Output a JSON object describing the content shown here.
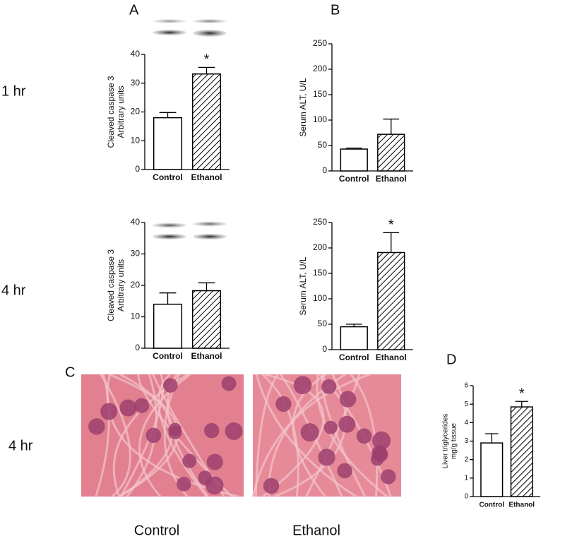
{
  "figure": {
    "panels": [
      "A",
      "B",
      "C",
      "D"
    ],
    "rows": [
      "1 hr",
      "4 hr",
      "4 hr"
    ],
    "image_captions": [
      "Control",
      "Ethanol"
    ]
  },
  "chart_data": [
    {
      "type": "bar",
      "ylabel": [
        "Cleaved caspase 3",
        "Arbitrary units"
      ],
      "categories": [
        "Control",
        "Ethanol"
      ],
      "values": [
        18,
        33.2
      ],
      "errors": [
        1.8,
        2.3
      ],
      "hatched": [
        false,
        true
      ],
      "significance": [
        null,
        "*"
      ],
      "ylim": [
        0,
        40
      ],
      "yticks": [
        0,
        10,
        20,
        30,
        40
      ]
    },
    {
      "type": "bar",
      "ylabel": [
        "Serum ALT, U/L"
      ],
      "categories": [
        "Control",
        "Ethanol"
      ],
      "values": [
        43,
        72
      ],
      "errors": [
        2,
        30
      ],
      "hatched": [
        false,
        true
      ],
      "significance": [
        null,
        null
      ],
      "ylim": [
        0,
        250
      ],
      "yticks": [
        0,
        50,
        100,
        150,
        200,
        250
      ]
    },
    {
      "type": "bar",
      "ylabel": [
        "Cleaved caspase 3",
        "Arbitrary units"
      ],
      "categories": [
        "Control",
        "Ethanol"
      ],
      "values": [
        14,
        18.3
      ],
      "errors": [
        3.6,
        2.5
      ],
      "hatched": [
        false,
        true
      ],
      "significance": [
        null,
        null
      ],
      "ylim": [
        0,
        40
      ],
      "yticks": [
        0,
        10,
        20,
        30,
        40
      ]
    },
    {
      "type": "bar",
      "ylabel": [
        "Serum ALT, U/L"
      ],
      "categories": [
        "Control",
        "Ethanol"
      ],
      "values": [
        45,
        191
      ],
      "errors": [
        5,
        39
      ],
      "hatched": [
        false,
        true
      ],
      "significance": [
        null,
        "*"
      ],
      "ylim": [
        0,
        250
      ],
      "yticks": [
        0,
        50,
        100,
        150,
        200,
        250
      ]
    },
    {
      "type": "bar",
      "ylabel": [
        "Liver triglycerides",
        "mg/g tissue"
      ],
      "categories": [
        "Control",
        "Ethanol"
      ],
      "values": [
        2.9,
        4.85
      ],
      "errors": [
        0.5,
        0.3
      ],
      "hatched": [
        false,
        true
      ],
      "significance": [
        null,
        "*"
      ],
      "ylim": [
        0,
        6
      ],
      "yticks": [
        0,
        1,
        2,
        3,
        4,
        5,
        6
      ]
    }
  ]
}
